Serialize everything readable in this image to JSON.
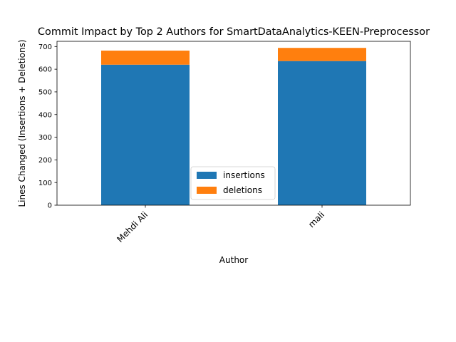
{
  "chart_data": {
    "type": "bar",
    "stacked": true,
    "title": "Commit Impact by Top 2 Authors for SmartDataAnalytics-KEEN-Preprocessor",
    "xlabel": "Author",
    "ylabel": "Lines Changed (Insertions + Deletions)",
    "categories": [
      "Mehdi Ali",
      "mali"
    ],
    "series": [
      {
        "name": "insertions",
        "values": [
          620,
          636
        ],
        "color": "#1f77b4"
      },
      {
        "name": "deletions",
        "values": [
          62,
          58
        ],
        "color": "#ff7f0e"
      }
    ],
    "ylim": [
      0,
      723
    ],
    "yticks": [
      0,
      100,
      200,
      300,
      400,
      500,
      600,
      700
    ],
    "grid": false,
    "legend_position": "lower-center"
  }
}
